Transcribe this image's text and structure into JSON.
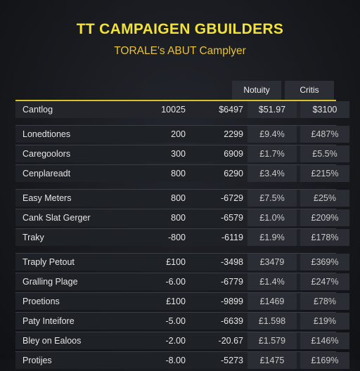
{
  "header": {
    "title": "TT CAMPAIGEN GBUILDERS",
    "subtitle": "TORALE's ABUT Camplyer"
  },
  "columns": {
    "col_a": "Notuity",
    "col_b": "Critis"
  },
  "rows": [
    {
      "name": "Cantlog",
      "v1": "10025",
      "v2": "$6497",
      "v3": "$51.97",
      "v4": "$3100"
    },
    {
      "name": "Lonedtiones",
      "v1": "200",
      "v2": "2299",
      "v3": "£9.4%",
      "v4": "£487%"
    },
    {
      "name": "Caregoolors",
      "v1": "300",
      "v2": "6909",
      "v3": "£1.7%",
      "v4": "£5.5%"
    },
    {
      "name": "Cenplareadt",
      "v1": "800",
      "v2": "6290",
      "v3": "£3.4%",
      "v4": "£215%"
    },
    {
      "name": "Easy Meters",
      "v1": "800",
      "v2": "-6729",
      "v3": "£7.5%",
      "v4": "£25%"
    },
    {
      "name": "Cank Slat Gerger",
      "v1": "800",
      "v2": "-6579",
      "v3": "£1.0%",
      "v4": "£209%"
    },
    {
      "name": "Traky",
      "v1": "-800",
      "v2": "-6119",
      "v3": "£1.9%",
      "v4": "£178%"
    },
    {
      "name": "Traply Petout",
      "v1": "£100",
      "v2": "-3498",
      "v3": "£3479",
      "v4": "£369%"
    },
    {
      "name": "Gralling Plage",
      "v1": "-6.00",
      "v2": "-6779",
      "v3": "£1.4%",
      "v4": "£247%"
    },
    {
      "name": "Proetions",
      "v1": "£100",
      "v2": "-9899",
      "v3": "£1469",
      "v4": "£78%"
    },
    {
      "name": "Paty Inteifore",
      "v1": "-5.00",
      "v2": "-6639",
      "v3": "£1.598",
      "v4": "£19%"
    },
    {
      "name": "Bley on Ealoos",
      "v1": "-2.00",
      "v2": "-20.67",
      "v3": "£1.579",
      "v4": "£146%"
    },
    {
      "name": "Protijes",
      "v1": "-8.00",
      "v2": "-5273",
      "v3": "£1475",
      "v4": "£169%"
    }
  ]
}
